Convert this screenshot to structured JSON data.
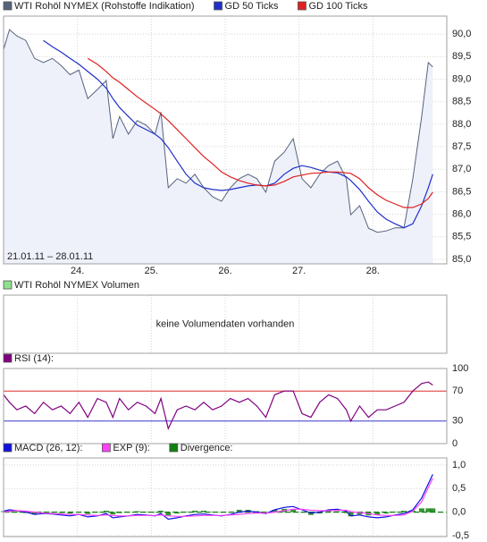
{
  "chart_data": [
    {
      "type": "line",
      "x": [
        23.0,
        23.08,
        23.18,
        23.3,
        23.42,
        23.54,
        23.66,
        23.78,
        23.9,
        24.02,
        24.14,
        24.27,
        24.39,
        24.48,
        24.57,
        24.69,
        24.81,
        24.93,
        25.05,
        25.13,
        25.23,
        25.35,
        25.47,
        25.59,
        25.71,
        25.83,
        25.95,
        26.07,
        26.19,
        26.31,
        26.43,
        26.55,
        26.67,
        26.8,
        26.92,
        27.04,
        27.16,
        27.28,
        27.4,
        27.52,
        27.64,
        27.7,
        27.82,
        27.94,
        28.06,
        28.18,
        28.3,
        28.42,
        28.54,
        28.66,
        28.75,
        28.81
      ],
      "series": [
        {
          "name": "WTI Rohöl NYMEX (Rohstoffe Indikation)",
          "color": "#56627c",
          "fill": "#eef1fa",
          "values": [
            89.66,
            90.1,
            89.96,
            89.86,
            89.46,
            89.37,
            89.46,
            89.3,
            89.1,
            89.2,
            88.57,
            88.77,
            88.97,
            87.68,
            88.17,
            87.78,
            88.08,
            87.98,
            87.78,
            88.27,
            86.59,
            86.79,
            86.69,
            86.89,
            86.59,
            86.39,
            86.29,
            86.59,
            86.79,
            86.89,
            86.79,
            86.49,
            87.18,
            87.38,
            87.68,
            86.79,
            86.59,
            86.89,
            87.08,
            87.18,
            86.79,
            85.99,
            86.19,
            85.69,
            85.6,
            85.63,
            85.7,
            85.7,
            86.79,
            88.17,
            89.37,
            89.27
          ]
        },
        {
          "name": "GD 50 Ticks",
          "color": "#2030c8",
          "values": [
            null,
            null,
            null,
            null,
            null,
            89.86,
            89.72,
            89.6,
            89.46,
            89.33,
            89.17,
            89.0,
            88.8,
            88.57,
            88.37,
            88.17,
            87.98,
            87.88,
            87.78,
            87.68,
            87.48,
            87.18,
            86.89,
            86.69,
            86.59,
            86.55,
            86.53,
            86.55,
            86.59,
            86.63,
            86.65,
            86.63,
            86.69,
            86.89,
            87.02,
            87.08,
            87.04,
            86.98,
            86.94,
            86.92,
            86.83,
            86.75,
            86.55,
            86.29,
            86.05,
            85.89,
            85.79,
            85.7,
            85.79,
            86.19,
            86.59,
            86.89
          ]
        },
        {
          "name": "GD 100 Ticks",
          "color": "#e02020",
          "values": [
            null,
            null,
            null,
            null,
            null,
            null,
            null,
            null,
            null,
            null,
            89.46,
            89.33,
            89.17,
            89.03,
            88.93,
            88.77,
            88.61,
            88.47,
            88.33,
            88.23,
            88.08,
            87.88,
            87.68,
            87.48,
            87.28,
            87.12,
            86.94,
            86.83,
            86.75,
            86.69,
            86.65,
            86.63,
            86.65,
            86.73,
            86.83,
            86.87,
            86.91,
            86.92,
            86.94,
            86.94,
            86.92,
            86.91,
            86.79,
            86.59,
            86.43,
            86.31,
            86.23,
            86.15,
            86.15,
            86.23,
            86.35,
            86.49
          ]
        }
      ],
      "xlim": [
        23.0,
        29.0
      ],
      "xticks": [
        {
          "value": 24,
          "label": "24."
        },
        {
          "value": 25,
          "label": "25."
        },
        {
          "value": 26,
          "label": "26."
        },
        {
          "value": 27,
          "label": "27."
        },
        {
          "value": 28,
          "label": "28."
        }
      ],
      "ylim": [
        84.9,
        90.4
      ],
      "yticks": [
        {
          "value": 85,
          "label": "85,0"
        },
        {
          "value": 85.5,
          "label": "85,5"
        },
        {
          "value": 86,
          "label": "86,0"
        },
        {
          "value": 86.5,
          "label": "86,5"
        },
        {
          "value": 87,
          "label": "87,0"
        },
        {
          "value": 87.5,
          "label": "87,5"
        },
        {
          "value": 88,
          "label": "88,0"
        },
        {
          "value": 88.5,
          "label": "88,5"
        },
        {
          "value": 89,
          "label": "89,0"
        },
        {
          "value": 89.5,
          "label": "89,5"
        },
        {
          "value": 90,
          "label": "90,0"
        }
      ],
      "annotation": "21.01.11 – 28.01.11",
      "grid": true
    },
    {
      "type": "bar",
      "series": [
        {
          "name": "WTI Rohöl NYMEX Volumen",
          "color": "#8ee08e",
          "values": []
        }
      ],
      "annotation": "keine Volumendaten vorhanden"
    },
    {
      "type": "line",
      "x": [
        23.0,
        23.08,
        23.18,
        23.3,
        23.42,
        23.54,
        23.66,
        23.78,
        23.9,
        24.02,
        24.14,
        24.27,
        24.39,
        24.48,
        24.57,
        24.69,
        24.81,
        24.93,
        25.05,
        25.13,
        25.23,
        25.35,
        25.47,
        25.59,
        25.71,
        25.83,
        25.95,
        26.07,
        26.19,
        26.31,
        26.43,
        26.55,
        26.67,
        26.8,
        26.92,
        27.04,
        27.16,
        27.28,
        27.4,
        27.52,
        27.64,
        27.7,
        27.82,
        27.94,
        28.06,
        28.18,
        28.3,
        28.42,
        28.54,
        28.66,
        28.75,
        28.81
      ],
      "series": [
        {
          "name": "RSI (14):",
          "color": "#800080",
          "values": [
            65,
            55,
            45,
            50,
            40,
            55,
            45,
            50,
            40,
            55,
            35,
            60,
            55,
            35,
            60,
            45,
            55,
            50,
            40,
            60,
            20,
            45,
            50,
            45,
            55,
            45,
            50,
            60,
            55,
            60,
            50,
            35,
            65,
            70,
            70,
            40,
            35,
            55,
            65,
            60,
            45,
            30,
            50,
            35,
            45,
            45,
            50,
            55,
            70,
            80,
            82,
            78
          ]
        }
      ],
      "xlim": [
        23.0,
        29.0
      ],
      "ylim": [
        0,
        100
      ],
      "yticks": [
        0,
        30,
        70,
        100
      ],
      "levels": [
        {
          "value": 70,
          "color": "#e03030"
        },
        {
          "value": 30,
          "color": "#3c3cd0"
        }
      ],
      "grid": true
    },
    {
      "type": "line",
      "x": [
        23.0,
        23.08,
        23.18,
        23.3,
        23.42,
        23.54,
        23.66,
        23.78,
        23.9,
        24.02,
        24.14,
        24.27,
        24.39,
        24.48,
        24.57,
        24.69,
        24.81,
        24.93,
        25.05,
        25.13,
        25.23,
        25.35,
        25.47,
        25.59,
        25.71,
        25.83,
        25.95,
        26.07,
        26.19,
        26.31,
        26.43,
        26.55,
        26.67,
        26.8,
        26.92,
        27.04,
        27.16,
        27.28,
        27.4,
        27.52,
        27.64,
        27.7,
        27.82,
        27.94,
        28.06,
        28.18,
        28.3,
        28.42,
        28.54,
        28.66,
        28.75,
        28.81
      ],
      "series": [
        {
          "name": "MACD (26, 12):",
          "color": "#1010e0",
          "values": [
            0.02,
            0.05,
            0.03,
            0.0,
            -0.05,
            -0.03,
            -0.04,
            -0.06,
            -0.08,
            -0.05,
            -0.1,
            -0.08,
            -0.03,
            -0.12,
            -0.1,
            -0.08,
            -0.05,
            -0.06,
            -0.08,
            -0.03,
            -0.15,
            -0.12,
            -0.08,
            -0.05,
            -0.04,
            -0.06,
            -0.08,
            -0.05,
            0.0,
            0.02,
            0.0,
            -0.03,
            0.05,
            0.1,
            0.12,
            0.05,
            -0.02,
            0.0,
            0.05,
            0.06,
            0.02,
            -0.08,
            -0.06,
            -0.1,
            -0.12,
            -0.1,
            -0.06,
            -0.03,
            0.05,
            0.3,
            0.6,
            0.8
          ]
        },
        {
          "name": "EXP (9):",
          "color": "#ff40ff",
          "values": [
            0.0,
            0.02,
            0.03,
            0.02,
            0.0,
            -0.02,
            -0.03,
            -0.04,
            -0.05,
            -0.05,
            -0.06,
            -0.07,
            -0.06,
            -0.07,
            -0.08,
            -0.08,
            -0.07,
            -0.07,
            -0.07,
            -0.06,
            -0.08,
            -0.09,
            -0.09,
            -0.08,
            -0.07,
            -0.07,
            -0.07,
            -0.06,
            -0.05,
            -0.03,
            -0.02,
            -0.02,
            0.0,
            0.03,
            0.06,
            0.06,
            0.04,
            0.03,
            0.03,
            0.04,
            0.04,
            0.01,
            -0.01,
            -0.03,
            -0.06,
            -0.07,
            -0.07,
            -0.06,
            0.02,
            0.22,
            0.52,
            0.72
          ]
        },
        {
          "name": "Divergence:",
          "color": "#108010",
          "style": "bar",
          "values": [
            0.02,
            0.03,
            0.0,
            -0.02,
            -0.05,
            -0.01,
            -0.01,
            -0.02,
            -0.03,
            0.0,
            -0.04,
            -0.01,
            0.03,
            -0.05,
            -0.02,
            0.0,
            0.02,
            0.01,
            -0.01,
            0.03,
            -0.07,
            -0.03,
            0.01,
            0.03,
            0.03,
            0.01,
            -0.01,
            0.01,
            0.05,
            0.05,
            0.02,
            -0.01,
            0.05,
            0.07,
            0.06,
            -0.01,
            -0.06,
            -0.03,
            0.02,
            0.02,
            -0.02,
            -0.09,
            -0.05,
            -0.07,
            -0.06,
            -0.03,
            0.01,
            0.03,
            0.03,
            0.08,
            0.08,
            0.08
          ]
        }
      ],
      "xlim": [
        23.0,
        29.0
      ],
      "ylim": [
        -0.52,
        1.15
      ],
      "yticks": [
        {
          "value": -0.5,
          "label": "-0,5"
        },
        {
          "value": 0,
          "label": "0,0"
        },
        {
          "value": 0.5,
          "label": "0,5"
        },
        {
          "value": 1,
          "label": "1,0"
        }
      ],
      "grid": true
    }
  ]
}
